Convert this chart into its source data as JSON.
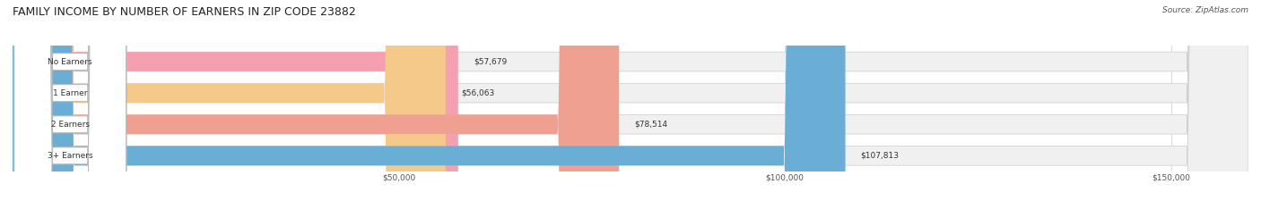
{
  "title": "FAMILY INCOME BY NUMBER OF EARNERS IN ZIP CODE 23882",
  "source": "Source: ZipAtlas.com",
  "categories": [
    "No Earners",
    "1 Earner",
    "2 Earners",
    "3+ Earners"
  ],
  "values": [
    57679,
    56063,
    78514,
    107813
  ],
  "bar_colors": [
    "#f4a0b0",
    "#f5c98a",
    "#f0a090",
    "#6aaed6"
  ],
  "bar_bg_color": "#f0f0f0",
  "label_bg_color": "#ffffff",
  "xlim": [
    0,
    160000
  ],
  "xticks": [
    50000,
    100000,
    150000
  ],
  "xtick_labels": [
    "$50,000",
    "$100,000",
    "$150,000"
  ],
  "figsize": [
    14.06,
    2.34
  ],
  "dpi": 100,
  "title_fontsize": 9,
  "bar_height": 0.62,
  "background_color": "#ffffff"
}
